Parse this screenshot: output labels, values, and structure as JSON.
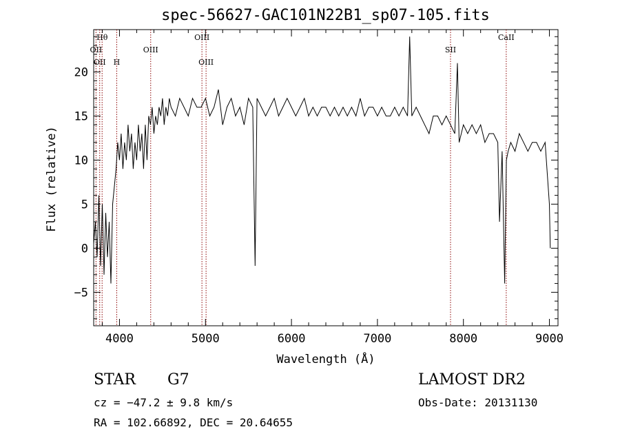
{
  "chart_data": {
    "type": "line",
    "title": "spec-56627-GAC101N22B1_sp07-105.fits",
    "xlabel": "Wavelength (Å)",
    "ylabel": "Flux (relative)",
    "xlim": [
      3700,
      9100
    ],
    "ylim": [
      -8.8,
      24.8
    ],
    "x_ticks": [
      4000,
      5000,
      6000,
      7000,
      8000,
      9000
    ],
    "y_ticks": [
      -5,
      0,
      5,
      10,
      15,
      20
    ],
    "grid": false,
    "line_color": "#000000",
    "marker_color": "#8b0000",
    "series": [
      {
        "x": [
          3700,
          3720,
          3740,
          3760,
          3780,
          3800,
          3820,
          3840,
          3860,
          3880,
          3900,
          3920,
          3940,
          3960,
          3980,
          4000,
          4020,
          4040,
          4060,
          4080,
          4100,
          4120,
          4140,
          4160,
          4180,
          4200,
          4220,
          4240,
          4260,
          4280,
          4300,
          4320,
          4340,
          4360,
          4380,
          4400,
          4420,
          4440,
          4460,
          4480,
          4500,
          4520,
          4540,
          4560,
          4580,
          4600,
          4650,
          4700,
          4750,
          4800,
          4850,
          4900,
          4950,
          5000,
          5050,
          5100,
          5150,
          5200,
          5250,
          5300,
          5350,
          5400,
          5450,
          5500,
          5550,
          5577,
          5600,
          5650,
          5700,
          5750,
          5800,
          5850,
          5900,
          5950,
          6000,
          6050,
          6100,
          6150,
          6200,
          6250,
          6300,
          6350,
          6400,
          6450,
          6500,
          6550,
          6600,
          6650,
          6700,
          6750,
          6800,
          6850,
          6900,
          6950,
          7000,
          7050,
          7100,
          7150,
          7200,
          7250,
          7300,
          7350,
          7375,
          7400,
          7450,
          7500,
          7550,
          7600,
          7650,
          7700,
          7750,
          7800,
          7850,
          7900,
          7930,
          7950,
          8000,
          8050,
          8100,
          8150,
          8200,
          8250,
          8300,
          8350,
          8400,
          8420,
          8450,
          8480,
          8500,
          8520,
          8550,
          8600,
          8650,
          8700,
          8750,
          8800,
          8850,
          8900,
          8950,
          9000,
          9010
        ],
        "y": [
          0.5,
          3,
          -1,
          6,
          -2,
          5,
          -3,
          4,
          -1,
          3,
          -4,
          5,
          7,
          9,
          12,
          10,
          13,
          9,
          12,
          10,
          14,
          11,
          13,
          9,
          12,
          10,
          14,
          11,
          13,
          9,
          14,
          10,
          15,
          14,
          16,
          13,
          15,
          14,
          16,
          15,
          17,
          14,
          16,
          15,
          17,
          16,
          15,
          17,
          16,
          15,
          17,
          16,
          16,
          17,
          15,
          16,
          18,
          14,
          16,
          17,
          15,
          16,
          14,
          17,
          16,
          -2,
          17,
          16,
          15,
          16,
          17,
          15,
          16,
          17,
          16,
          15,
          16,
          17,
          15,
          16,
          15,
          16,
          16,
          15,
          16,
          15,
          16,
          15,
          16,
          15,
          17,
          15,
          16,
          16,
          15,
          16,
          15,
          15,
          16,
          15,
          16,
          15,
          24,
          15,
          16,
          15,
          14,
          13,
          15,
          15,
          14,
          15,
          14,
          13,
          21,
          12,
          14,
          13,
          14,
          13,
          14,
          12,
          13,
          13,
          12,
          3,
          11,
          -4,
          10,
          11,
          12,
          11,
          13,
          12,
          11,
          12,
          12,
          11,
          12,
          5,
          0
        ]
      }
    ],
    "lines": [
      {
        "label": "Hθ",
        "x": 3798
      },
      {
        "label": "OII",
        "x": 3727
      },
      {
        "label": "OII",
        "x": 3770
      },
      {
        "label": "H",
        "x": 3968
      },
      {
        "label": "OIII",
        "x": 4363
      },
      {
        "label": "OIII",
        "x": 4959
      },
      {
        "label": "OIII",
        "x": 5007
      },
      {
        "label": "SII",
        "x": 7850
      },
      {
        "label": "CaII",
        "x": 8498
      }
    ]
  },
  "info": {
    "class": "STAR",
    "subclass": "G7",
    "cz": "cz = −47.2 ± 9.8 km/s",
    "radec": "RA = 102.66892, DEC =  20.64655",
    "survey": "LAMOST DR2",
    "obsdate": "Obs-Date: 20131130"
  }
}
